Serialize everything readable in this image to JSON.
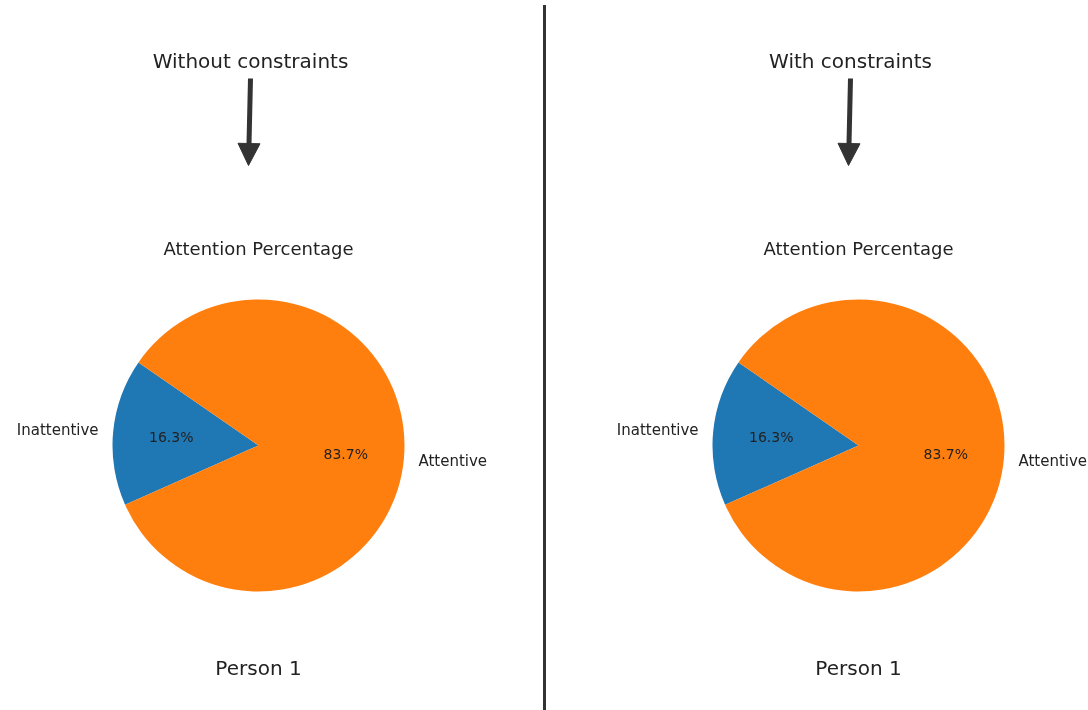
{
  "chart_data": [
    {
      "type": "pie",
      "subtitle": "Without constraints",
      "title": "Attention Percentage",
      "categories": [
        "Inattentive",
        "Attentive"
      ],
      "values": [
        16.3,
        83.7
      ],
      "colors": [
        "#1f77b4",
        "#ff7f0e"
      ],
      "value_labels": [
        "16.3%",
        "83.7%"
      ],
      "annotations": [
        "Person 1"
      ]
    },
    {
      "type": "pie",
      "subtitle": "With constraints",
      "title": "Attention Percentage",
      "categories": [
        "Inattentive",
        "Attentive"
      ],
      "values": [
        16.3,
        83.7
      ],
      "colors": [
        "#1f77b4",
        "#ff7f0e"
      ],
      "value_labels": [
        "16.3%",
        "83.7%"
      ],
      "annotations": [
        "Person 1"
      ]
    }
  ]
}
